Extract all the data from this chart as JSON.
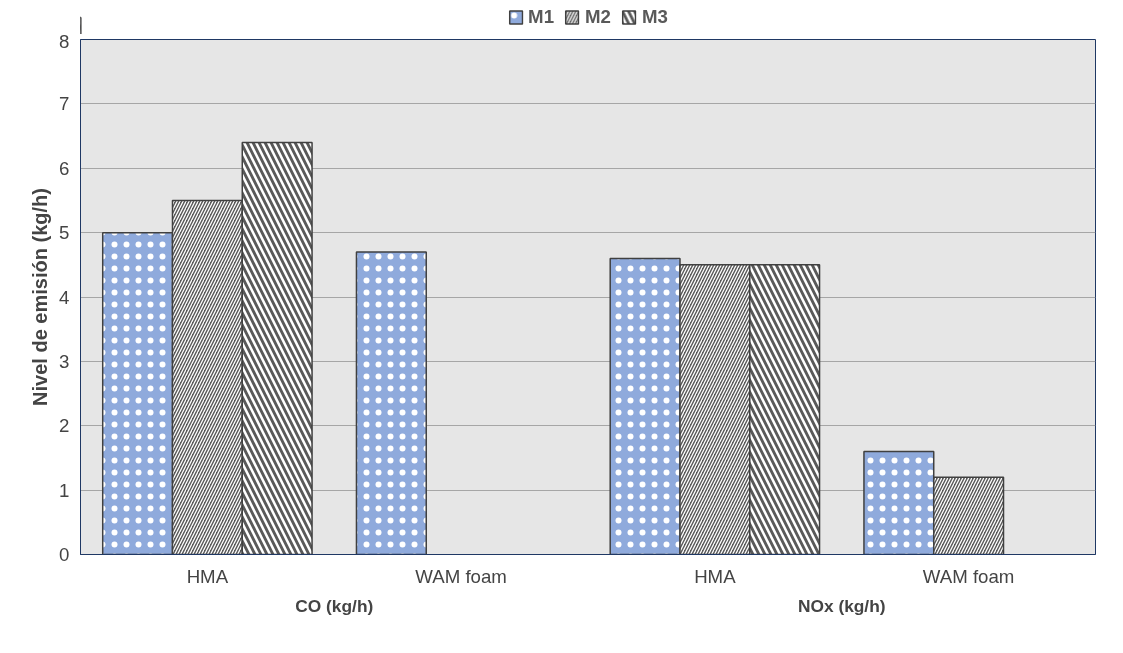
{
  "chart_data": {
    "type": "bar",
    "ylabel": "Nivel de emisión (kg/h)",
    "categories": [
      "HMA",
      "WAM foam",
      "HMA",
      "WAM foam"
    ],
    "series": [
      {
        "name": "M1",
        "color": "#8faadc",
        "values": [
          5.0,
          4.7,
          4.6,
          1.6
        ]
      },
      {
        "name": "M2",
        "color": "#595959",
        "values": [
          5.5,
          null,
          4.5,
          1.2
        ]
      },
      {
        "name": "M3",
        "color": "#595959",
        "values": [
          6.4,
          null,
          4.5,
          null
        ]
      }
    ],
    "annotations": [
      "CO (kg/h)",
      "NOx (kg/h)"
    ],
    "ylim": [
      0,
      8
    ],
    "yticks": [
      0,
      1,
      2,
      3,
      4,
      5,
      6,
      7,
      8
    ],
    "grid": "y",
    "legend": "top"
  }
}
